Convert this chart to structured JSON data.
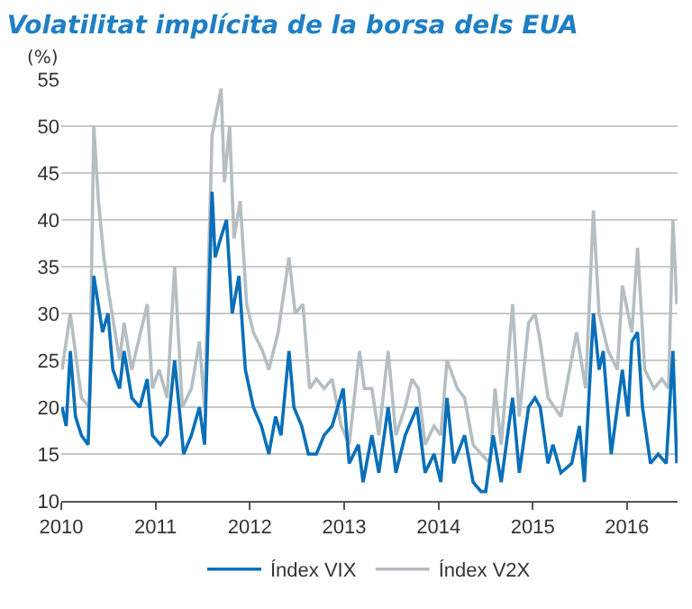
{
  "chart_data": {
    "type": "line",
    "title": "Volatilitat implícita de la borsa dels EUA",
    "ylabel": "(%)",
    "xlim": [
      "2010-01-01",
      "2016-07-15"
    ],
    "xticks": [
      {
        "value": "2010-01-01",
        "label": "2010"
      },
      {
        "value": "2011-01-01",
        "label": "2011"
      },
      {
        "value": "2012-01-01",
        "label": "2012"
      },
      {
        "value": "2013-01-01",
        "label": "2013"
      },
      {
        "value": "2014-01-01",
        "label": "2014"
      },
      {
        "value": "2015-01-01",
        "label": "2015"
      },
      {
        "value": "2016-01-01",
        "label": "2016"
      }
    ],
    "ylim": [
      10,
      55
    ],
    "yticks": [
      10,
      15,
      20,
      25,
      30,
      35,
      40,
      45,
      50,
      55
    ],
    "grid": "y",
    "legend": "bottom",
    "marker": "none",
    "line_style": "solid",
    "series": [
      {
        "name": "Índex VIX",
        "color": "#0a6fb8",
        "x": [
          "2010-01-04",
          "2010-01-20",
          "2010-02-05",
          "2010-02-25",
          "2010-03-20",
          "2010-04-15",
          "2010-05-07",
          "2010-06-10",
          "2010-07-01",
          "2010-07-20",
          "2010-08-15",
          "2010-09-01",
          "2010-10-01",
          "2010-11-01",
          "2010-11-30",
          "2010-12-20",
          "2011-01-20",
          "2011-02-15",
          "2011-03-16",
          "2011-04-20",
          "2011-05-20",
          "2011-06-20",
          "2011-07-10",
          "2011-08-08",
          "2011-08-20",
          "2011-09-10",
          "2011-10-03",
          "2011-10-25",
          "2011-11-20",
          "2011-12-15",
          "2012-01-15",
          "2012-02-15",
          "2012-03-15",
          "2012-04-10",
          "2012-05-01",
          "2012-06-01",
          "2012-06-20",
          "2012-07-20",
          "2012-08-15",
          "2012-09-15",
          "2012-10-15",
          "2012-11-15",
          "2012-12-28",
          "2013-01-20",
          "2013-02-25",
          "2013-03-15",
          "2013-04-18",
          "2013-05-15",
          "2013-06-20",
          "2013-07-20",
          "2013-08-25",
          "2013-10-10",
          "2013-11-10",
          "2013-12-15",
          "2014-01-10",
          "2014-02-03",
          "2014-03-01",
          "2014-04-12",
          "2014-05-15",
          "2014-06-15",
          "2014-07-03",
          "2014-08-01",
          "2014-09-01",
          "2014-10-15",
          "2014-11-10",
          "2014-12-16",
          "2015-01-10",
          "2015-01-30",
          "2015-03-01",
          "2015-03-20",
          "2015-04-20",
          "2015-06-01",
          "2015-07-01",
          "2015-07-20",
          "2015-08-24",
          "2015-09-15",
          "2015-10-01",
          "2015-11-01",
          "2015-12-14",
          "2016-01-05",
          "2016-01-20",
          "2016-02-11",
          "2016-03-01",
          "2016-04-01",
          "2016-05-01",
          "2016-06-01",
          "2016-06-27",
          "2016-07-12"
        ],
        "values": [
          20,
          18,
          26,
          19,
          17,
          16,
          34,
          28,
          30,
          24,
          22,
          26,
          21,
          20,
          23,
          17,
          16,
          17,
          25,
          15,
          17,
          20,
          16,
          43,
          36,
          38,
          40,
          30,
          34,
          24,
          20,
          18,
          15,
          19,
          17,
          26,
          20,
          18,
          15,
          15,
          17,
          18,
          22,
          14,
          16,
          12,
          17,
          13,
          20,
          13,
          17,
          20,
          13,
          15,
          12,
          21,
          14,
          17,
          12,
          11,
          11,
          17,
          12,
          21,
          13,
          20,
          21,
          20,
          14,
          16,
          13,
          14,
          18,
          12,
          30,
          24,
          26,
          15,
          24,
          19,
          27,
          28,
          20,
          14,
          15,
          14,
          26,
          14
        ]
      },
      {
        "name": "Índex V2X",
        "color": "#b4bec3",
        "x": [
          "2010-01-04",
          "2010-02-05",
          "2010-03-20",
          "2010-04-20",
          "2010-05-07",
          "2010-05-25",
          "2010-06-15",
          "2010-07-05",
          "2010-08-15",
          "2010-09-01",
          "2010-10-01",
          "2010-11-30",
          "2010-12-20",
          "2011-01-15",
          "2011-02-15",
          "2011-03-16",
          "2011-04-15",
          "2011-05-20",
          "2011-06-20",
          "2011-07-10",
          "2011-08-08",
          "2011-09-12",
          "2011-09-25",
          "2011-10-15",
          "2011-11-01",
          "2011-11-25",
          "2011-12-20",
          "2012-01-15",
          "2012-02-20",
          "2012-03-15",
          "2012-04-20",
          "2012-06-01",
          "2012-06-25",
          "2012-07-25",
          "2012-08-20",
          "2012-09-15",
          "2012-10-15",
          "2012-11-15",
          "2012-12-20",
          "2013-01-20",
          "2013-03-01",
          "2013-03-20",
          "2013-04-18",
          "2013-05-15",
          "2013-06-20",
          "2013-07-20",
          "2013-08-25",
          "2013-09-20",
          "2013-10-15",
          "2013-11-10",
          "2013-12-15",
          "2014-01-10",
          "2014-02-03",
          "2014-03-15",
          "2014-04-12",
          "2014-05-15",
          "2014-06-15",
          "2014-07-20",
          "2014-08-08",
          "2014-09-01",
          "2014-10-15",
          "2014-11-10",
          "2014-12-16",
          "2015-01-10",
          "2015-01-30",
          "2015-03-01",
          "2015-04-20",
          "2015-06-20",
          "2015-07-25",
          "2015-08-24",
          "2015-09-15",
          "2015-10-20",
          "2015-11-25",
          "2015-12-14",
          "2016-01-20",
          "2016-02-11",
          "2016-03-10",
          "2016-04-15",
          "2016-05-15",
          "2016-06-10",
          "2016-06-27",
          "2016-07-12"
        ],
        "values": [
          24,
          30,
          21,
          20,
          50,
          42,
          36,
          32,
          25,
          29,
          24,
          31,
          22,
          24,
          21,
          35,
          20,
          22,
          27,
          20,
          49,
          54,
          44,
          50,
          38,
          42,
          31,
          28,
          26,
          24,
          28,
          36,
          30,
          31,
          22,
          23,
          22,
          23,
          18,
          16,
          26,
          22,
          22,
          17,
          26,
          17,
          20,
          23,
          22,
          16,
          18,
          17,
          25,
          22,
          21,
          16,
          15,
          14,
          22,
          16,
          31,
          19,
          29,
          30,
          27,
          21,
          19,
          28,
          22,
          41,
          30,
          26,
          24,
          33,
          28,
          37,
          24,
          22,
          23,
          22,
          40,
          31
        ]
      }
    ]
  }
}
